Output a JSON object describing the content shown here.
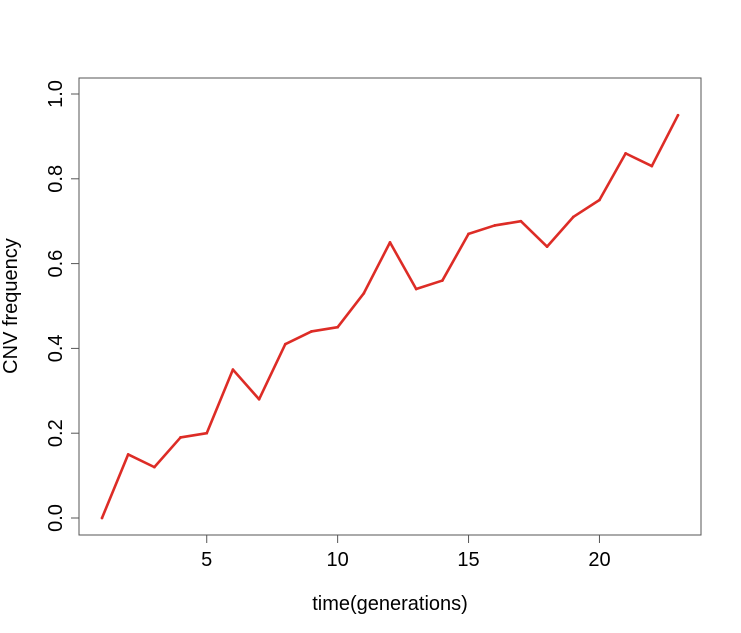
{
  "chart_data": {
    "type": "line",
    "title": "",
    "xlabel": "time(generations)",
    "ylabel": "CNV frequency",
    "xlim": [
      1,
      23
    ],
    "ylim": [
      0,
      1
    ],
    "x_ticks": [
      5,
      10,
      15,
      20
    ],
    "y_ticks": [
      "0.0",
      "0.2",
      "0.4",
      "0.6",
      "0.8",
      "1.0"
    ],
    "grid": false,
    "series": [
      {
        "color": "#dd2c26",
        "x": [
          1,
          2,
          3,
          4,
          5,
          6,
          7,
          8,
          9,
          10,
          11,
          12,
          13,
          14,
          15,
          16,
          17,
          18,
          19,
          20,
          21,
          22,
          23
        ],
        "values": [
          0.0,
          0.15,
          0.12,
          0.19,
          0.2,
          0.35,
          0.28,
          0.41,
          0.44,
          0.45,
          0.53,
          0.65,
          0.54,
          0.56,
          0.67,
          0.69,
          0.7,
          0.64,
          0.71,
          0.75,
          0.86,
          0.83,
          0.95
        ]
      }
    ]
  }
}
